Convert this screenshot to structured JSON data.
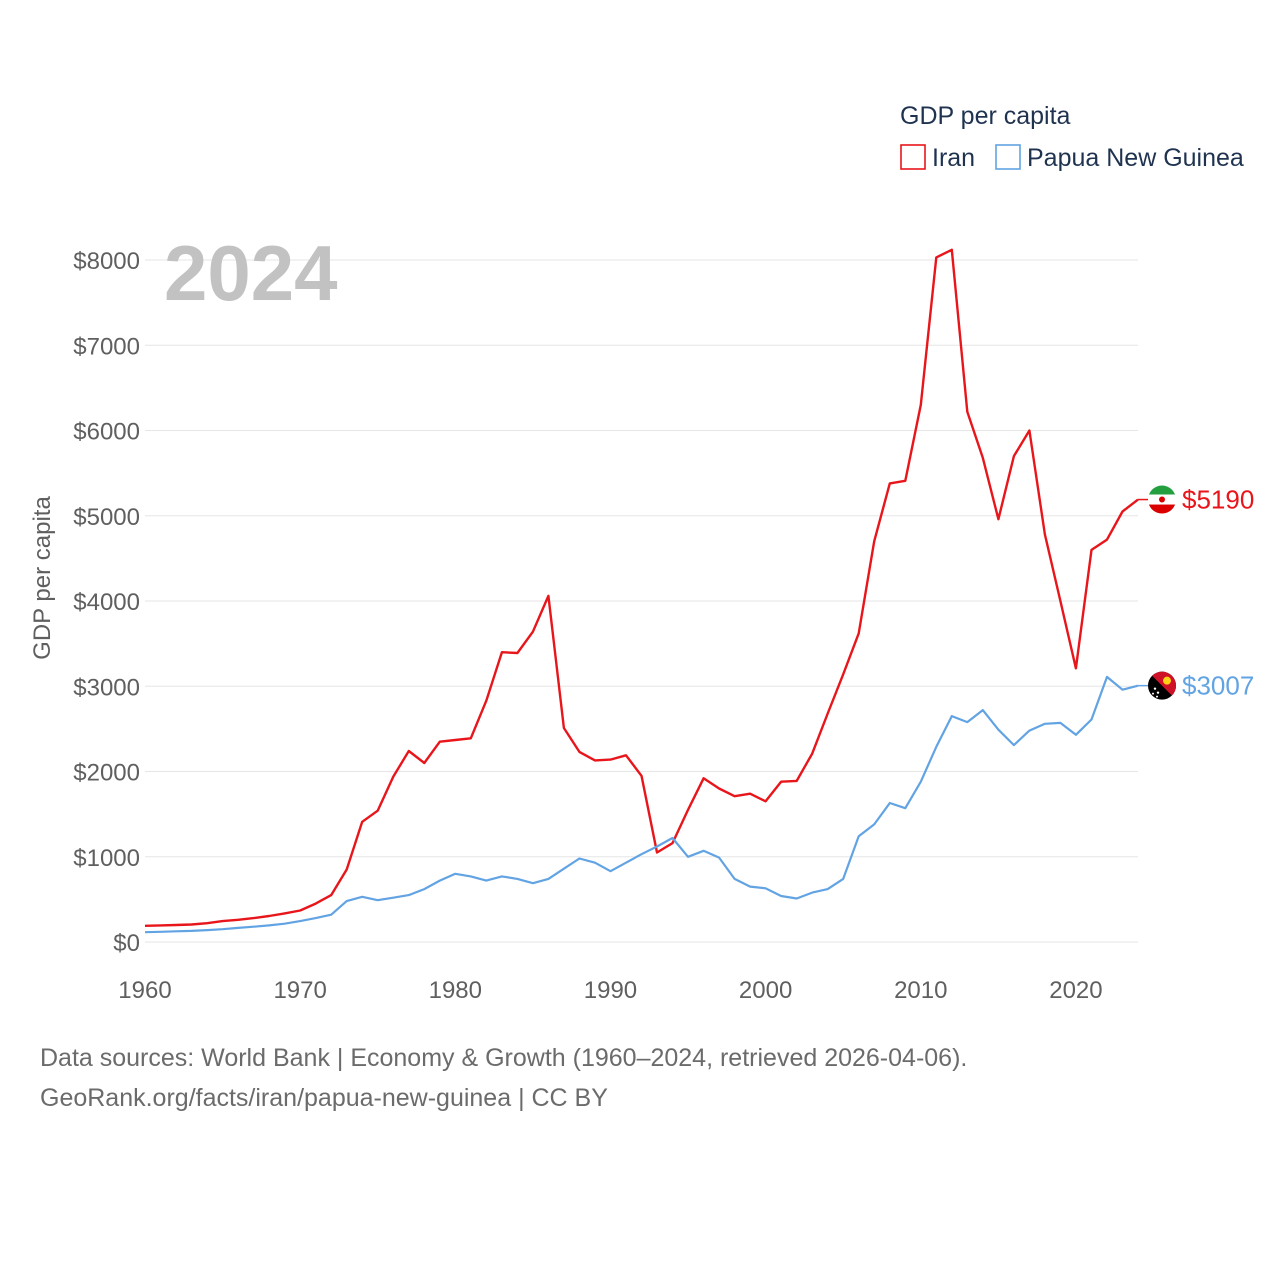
{
  "chart_data": {
    "type": "line",
    "title": "GDP per capita",
    "ylabel": "GDP per capita",
    "xlabel": "",
    "year_display": "2024",
    "xlim": [
      1960,
      2024
    ],
    "ylim": [
      0,
      8000
    ],
    "x_ticks": [
      1960,
      1970,
      1980,
      1990,
      2000,
      2010,
      2020
    ],
    "y_ticks": [
      {
        "value": 0,
        "label": "$0"
      },
      {
        "value": 1000,
        "label": "$1000"
      },
      {
        "value": 2000,
        "label": "$2000"
      },
      {
        "value": 3000,
        "label": "$3000"
      },
      {
        "value": 4000,
        "label": "$4000"
      },
      {
        "value": 5000,
        "label": "$5000"
      },
      {
        "value": 6000,
        "label": "$6000"
      },
      {
        "value": 7000,
        "label": "$7000"
      },
      {
        "value": 8000,
        "label": "$8000"
      }
    ],
    "legend": {
      "title": "GDP per capita",
      "position": "top-right"
    },
    "series": [
      {
        "name": "Iran",
        "color": "#e8161b",
        "end_label": "$5190",
        "flag_icon": "iran-flag-icon",
        "x": [
          1960,
          1961,
          1962,
          1963,
          1964,
          1965,
          1966,
          1967,
          1968,
          1969,
          1970,
          1971,
          1972,
          1973,
          1974,
          1975,
          1976,
          1977,
          1978,
          1979,
          1980,
          1981,
          1982,
          1983,
          1984,
          1985,
          1986,
          1987,
          1988,
          1989,
          1990,
          1991,
          1992,
          1993,
          1994,
          1995,
          1996,
          1997,
          1998,
          1999,
          2000,
          2001,
          2002,
          2003,
          2004,
          2005,
          2006,
          2007,
          2008,
          2009,
          2010,
          2011,
          2012,
          2013,
          2014,
          2015,
          2016,
          2017,
          2018,
          2019,
          2020,
          2021,
          2022,
          2023,
          2024
        ],
        "values": [
          190,
          195,
          200,
          205,
          220,
          245,
          260,
          280,
          305,
          335,
          370,
          450,
          550,
          850,
          1410,
          1540,
          1940,
          2240,
          2100,
          2350,
          2370,
          2390,
          2830,
          3400,
          3390,
          3640,
          4060,
          2510,
          2230,
          2130,
          2140,
          2190,
          1950,
          1050,
          1160,
          1550,
          1920,
          1800,
          1710,
          1740,
          1650,
          1880,
          1890,
          2210,
          2680,
          3140,
          3620,
          4700,
          5380,
          5410,
          6300,
          8030,
          8120,
          6220,
          5680,
          4960,
          5700,
          6000,
          4780,
          4000,
          3210,
          4600,
          4720,
          5050,
          5190
        ]
      },
      {
        "name": "Papua New Guinea",
        "color": "#62a3e3",
        "end_label": "$3007",
        "flag_icon": "papua-new-guinea-flag-icon",
        "x": [
          1960,
          1961,
          1962,
          1963,
          1964,
          1965,
          1966,
          1967,
          1968,
          1969,
          1970,
          1971,
          1972,
          1973,
          1974,
          1975,
          1976,
          1977,
          1978,
          1979,
          1980,
          1981,
          1982,
          1983,
          1984,
          1985,
          1986,
          1987,
          1988,
          1989,
          1990,
          1991,
          1992,
          1993,
          1994,
          1995,
          1996,
          1997,
          1998,
          1999,
          2000,
          2001,
          2002,
          2003,
          2004,
          2005,
          2006,
          2007,
          2008,
          2009,
          2010,
          2011,
          2012,
          2013,
          2014,
          2015,
          2016,
          2017,
          2018,
          2019,
          2020,
          2021,
          2022,
          2023,
          2024
        ],
        "values": [
          115,
          120,
          125,
          130,
          140,
          150,
          165,
          180,
          195,
          215,
          245,
          280,
          320,
          480,
          530,
          490,
          520,
          550,
          620,
          720,
          800,
          770,
          720,
          770,
          740,
          690,
          740,
          860,
          980,
          930,
          830,
          930,
          1030,
          1120,
          1220,
          1000,
          1070,
          990,
          740,
          650,
          630,
          540,
          510,
          580,
          620,
          740,
          1240,
          1380,
          1630,
          1570,
          1880,
          2290,
          2650,
          2580,
          2720,
          2490,
          2310,
          2480,
          2560,
          2570,
          2430,
          2610,
          3110,
          2960,
          3007
        ]
      }
    ]
  },
  "footer": {
    "line1": "Data sources: World Bank | Economy & Growth (1960–2024, retrieved 2026-04-06).",
    "line2": "GeoRank.org/facts/iran/papua-new-guinea | CC BY"
  }
}
